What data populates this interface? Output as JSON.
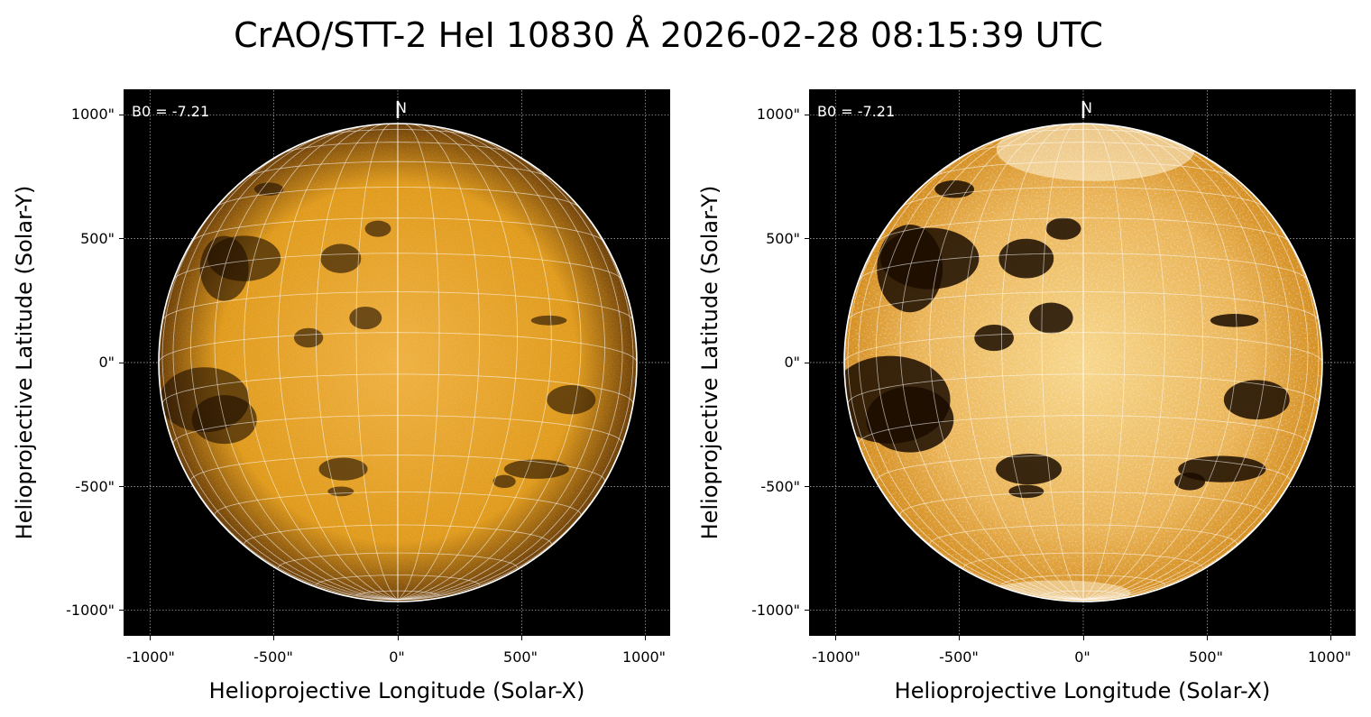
{
  "figure": {
    "title": "CrAO/STT-2 HeI 10830 Å 2026-02-28 08:15:39 UTC"
  },
  "panels": [
    {
      "b0_label": "B0 = -7.21",
      "north_label": "N",
      "xlabel": "Helioprojective Longitude (Solar-X)",
      "ylabel": "Helioprojective Latitude (Solar-Y)",
      "x_ticks": [
        "-1000\"",
        "-500\"",
        "0\"",
        "500\"",
        "1000\""
      ],
      "y_ticks": [
        "1000\"",
        "500\"",
        "0\"",
        "-500\"",
        "-1000\""
      ],
      "style": "normal"
    },
    {
      "b0_label": "B0 = -7.21",
      "north_label": "N",
      "xlabel": "Helioprojective Longitude (Solar-X)",
      "ylabel": "Helioprojective Latitude (Solar-Y)",
      "x_ticks": [
        "-1000\"",
        "-500\"",
        "0\"",
        "500\"",
        "1000\""
      ],
      "y_ticks": [
        "1000\"",
        "500\"",
        "0\"",
        "-500\"",
        "-1000\""
      ],
      "style": "enhanced"
    }
  ],
  "colors": {
    "disk": "#e09a1a",
    "disk_center": "#efb040",
    "limb": "#6a3c05",
    "grid": "#ffffff",
    "background": "#000000"
  }
}
